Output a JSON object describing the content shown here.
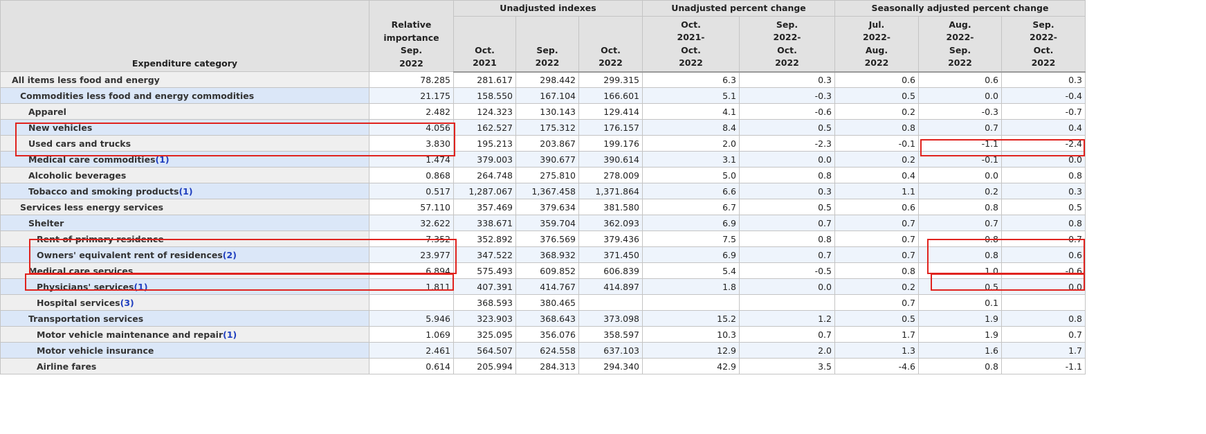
{
  "table": {
    "header": {
      "category": "Expenditure category",
      "importance": [
        "Relative",
        "importance",
        "Sep.",
        "2022"
      ],
      "groups": [
        {
          "title": "Unadjusted indexes",
          "columns": [
            [
              "Oct.",
              "2021"
            ],
            [
              "Sep.",
              "2022"
            ],
            [
              "Oct.",
              "2022"
            ]
          ]
        },
        {
          "title": "Unadjusted percent change",
          "columns": [
            [
              "Oct.",
              "2021-",
              "Oct.",
              "2022"
            ],
            [
              "Sep.",
              "2022-",
              "Oct.",
              "2022"
            ]
          ]
        },
        {
          "title": "Seasonally adjusted percent change",
          "columns": [
            [
              "Jul.",
              "2022-",
              "Aug.",
              "2022"
            ],
            [
              "Aug.",
              "2022-",
              "Sep.",
              "2022"
            ],
            [
              "Sep.",
              "2022-",
              "Oct.",
              "2022"
            ]
          ]
        }
      ]
    },
    "rows": [
      {
        "label": "All items less food and energy",
        "level": 0,
        "values": [
          "78.285",
          "281.617",
          "298.442",
          "299.315",
          "6.3",
          "0.3",
          "0.6",
          "0.6",
          "0.3"
        ]
      },
      {
        "label": "Commodities less food and energy commodities",
        "level": 1,
        "values": [
          "21.175",
          "158.550",
          "167.104",
          "166.601",
          "5.1",
          "-0.3",
          "0.5",
          "0.0",
          "-0.4"
        ]
      },
      {
        "label": "Apparel",
        "level": 2,
        "values": [
          "2.482",
          "124.323",
          "130.143",
          "129.414",
          "4.1",
          "-0.6",
          "0.2",
          "-0.3",
          "-0.7"
        ]
      },
      {
        "label": "New vehicles",
        "level": 2,
        "values": [
          "4.056",
          "162.527",
          "175.312",
          "176.157",
          "8.4",
          "0.5",
          "0.8",
          "0.7",
          "0.4"
        ]
      },
      {
        "label": "Used cars and trucks",
        "level": 2,
        "values": [
          "3.830",
          "195.213",
          "203.867",
          "199.176",
          "2.0",
          "-2.3",
          "-0.1",
          "-1.1",
          "-2.4"
        ]
      },
      {
        "label": "Medical care commodities",
        "note": "(1)",
        "level": 2,
        "values": [
          "1.474",
          "379.003",
          "390.677",
          "390.614",
          "3.1",
          "0.0",
          "0.2",
          "-0.1",
          "0.0"
        ]
      },
      {
        "label": "Alcoholic beverages",
        "level": 2,
        "values": [
          "0.868",
          "264.748",
          "275.810",
          "278.009",
          "5.0",
          "0.8",
          "0.4",
          "0.0",
          "0.8"
        ]
      },
      {
        "label": "Tobacco and smoking products",
        "note": "(1)",
        "level": 2,
        "values": [
          "0.517",
          "1,287.067",
          "1,367.458",
          "1,371.864",
          "6.6",
          "0.3",
          "1.1",
          "0.2",
          "0.3"
        ]
      },
      {
        "label": "Services less energy services",
        "level": 1,
        "values": [
          "57.110",
          "357.469",
          "379.634",
          "381.580",
          "6.7",
          "0.5",
          "0.6",
          "0.8",
          "0.5"
        ]
      },
      {
        "label": "Shelter",
        "level": 2,
        "values": [
          "32.622",
          "338.671",
          "359.704",
          "362.093",
          "6.9",
          "0.7",
          "0.7",
          "0.7",
          "0.8"
        ]
      },
      {
        "label": "Rent of primary residence",
        "level": 3,
        "values": [
          "7.352",
          "352.892",
          "376.569",
          "379.436",
          "7.5",
          "0.8",
          "0.7",
          "0.8",
          "0.7"
        ]
      },
      {
        "label": "Owners' equivalent rent of residences",
        "note": "(2)",
        "level": 3,
        "values": [
          "23.977",
          "347.522",
          "368.932",
          "371.450",
          "6.9",
          "0.7",
          "0.7",
          "0.8",
          "0.6"
        ]
      },
      {
        "label": "Medical care services",
        "level": 2,
        "values": [
          "6.894",
          "575.493",
          "609.852",
          "606.839",
          "5.4",
          "-0.5",
          "0.8",
          "1.0",
          "-0.6"
        ]
      },
      {
        "label": "Physicians' services",
        "note": "(1)",
        "level": 3,
        "values": [
          "1.811",
          "407.391",
          "414.767",
          "414.897",
          "1.8",
          "0.0",
          "0.2",
          "0.5",
          "0.0"
        ]
      },
      {
        "label": "Hospital services",
        "note": "(3)",
        "level": 3,
        "values": [
          null,
          "368.593",
          "380.465",
          null,
          null,
          null,
          "0.7",
          "0.1",
          null
        ]
      },
      {
        "label": "Transportation services",
        "level": 2,
        "values": [
          "5.946",
          "323.903",
          "368.643",
          "373.098",
          "15.2",
          "1.2",
          "0.5",
          "1.9",
          "0.8"
        ]
      },
      {
        "label": "Motor vehicle maintenance and repair",
        "note": "(1)",
        "level": 3,
        "values": [
          "1.069",
          "325.095",
          "356.076",
          "358.597",
          "10.3",
          "0.7",
          "1.7",
          "1.9",
          "0.7"
        ]
      },
      {
        "label": "Motor vehicle insurance",
        "level": 3,
        "values": [
          "2.461",
          "564.507",
          "624.558",
          "637.103",
          "12.9",
          "2.0",
          "1.3",
          "1.6",
          "1.7"
        ]
      },
      {
        "label": "Airline fares",
        "level": 3,
        "values": [
          "0.614",
          "205.994",
          "284.313",
          "294.340",
          "42.9",
          "3.5",
          "-4.6",
          "0.8",
          "-1.1"
        ]
      }
    ]
  }
}
